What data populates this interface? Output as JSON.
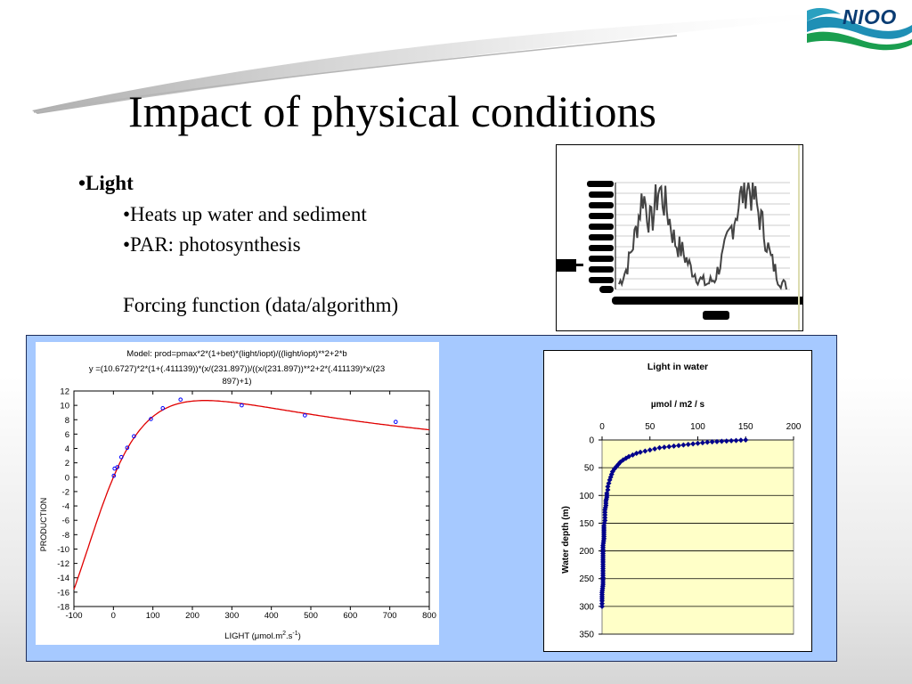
{
  "slide": {
    "title": "Impact of physical conditions",
    "logo_text": "NIOO",
    "bullets": {
      "light": "•Light",
      "heats": "•Heats up water and sediment",
      "par": "•PAR: photosynthesis",
      "forcing": "Forcing function (data/algorithm)"
    }
  },
  "colors": {
    "panel_blue": "#a6c9ff",
    "curve_red": "#e00000",
    "points_blue": "#0000ff",
    "depth_navy": "#00008b",
    "plot_fill": "#ffffc8"
  },
  "chart_data": [
    {
      "type": "line",
      "title": "",
      "note": "small embedded chart with illegible garbled axis labels",
      "series": [
        {
          "values": [
            0.05,
            0.2,
            0.5,
            0.9,
            0.6,
            0.95,
            0.75,
            0.45,
            0.35,
            0.2,
            0.1,
            0.05,
            0.1,
            0.3,
            0.55,
            0.8,
            1.0,
            0.85,
            0.6,
            0.3,
            0.1,
            0.02
          ]
        }
      ]
    },
    {
      "type": "scatter",
      "title": "Model: prod=pmax*2*(1+bet)*(light/iopt)/((light/iopt)**2+2*b",
      "subtitle": "y =(10.6727)*2*(1+(.411139))*(x/(231.897))/((x/(231.897))**2+2*(.411139)*x/(23",
      "subtitle_cont": "897)+1)",
      "xlabel": "LIGHT (μmol.m2.s-1)",
      "xlabel_parts": {
        "base": "LIGHT (",
        "mu": "μ",
        "mid": "mol.m",
        "sup1": "2",
        "dot": ".s",
        "sup2": "-1",
        "end": ")"
      },
      "ylabel": "PRODUCTION",
      "xlim": [
        -100,
        800
      ],
      "ylim": [
        -18,
        12
      ],
      "xticks": [
        "-100",
        "0",
        "100",
        "200",
        "300",
        "400",
        "500",
        "600",
        "700",
        "800"
      ],
      "yticks": [
        "12",
        "10",
        "8",
        "6",
        "4",
        "2",
        "0",
        "-2",
        "-4",
        "-6",
        "-8",
        "-10",
        "-12",
        "-14",
        "-16",
        "-18"
      ],
      "points": {
        "x": [
          1,
          3,
          10,
          20,
          35,
          52,
          95,
          125,
          170,
          325,
          485,
          715
        ],
        "y": [
          0.2,
          1.2,
          1.4,
          2.8,
          4.1,
          5.7,
          8.1,
          9.6,
          10.8,
          10.0,
          8.6,
          7.7
        ]
      },
      "model": {
        "pmax": 10.6727,
        "bet": 0.411139,
        "iopt": 231.897
      }
    },
    {
      "type": "scatter",
      "title": "Light in water",
      "xlabel": "µmol / m2 / s",
      "ylabel": "Water depth (m)",
      "xlim": [
        0,
        200
      ],
      "ylim": [
        0,
        350
      ],
      "xticks": [
        "0",
        "50",
        "100",
        "150",
        "200"
      ],
      "yticks": [
        "0",
        "50",
        "100",
        "150",
        "200",
        "250",
        "300",
        "350"
      ],
      "series": [
        {
          "x": [
            150,
            145,
            140,
            135,
            130,
            125,
            120,
            115,
            110,
            105,
            100,
            95,
            90,
            85,
            80,
            75,
            70,
            65,
            60,
            55,
            50,
            45,
            40,
            36,
            32,
            28,
            25,
            22,
            19,
            17,
            15,
            13,
            11,
            10,
            9,
            8,
            7,
            6,
            6,
            5,
            5,
            4,
            4,
            3,
            3,
            3,
            2,
            2,
            2,
            1,
            1,
            1,
            1,
            1,
            0,
            0,
            0
          ],
          "y": [
            0,
            0.5,
            1,
            1.5,
            2,
            2.5,
            3,
            3.5,
            4,
            5,
            6,
            7,
            8,
            9,
            10,
            11,
            12,
            13,
            14,
            16,
            18,
            20,
            22,
            24,
            27,
            30,
            33,
            36,
            40,
            44,
            48,
            52,
            57,
            62,
            67,
            72,
            78,
            84,
            90,
            96,
            103,
            110,
            118,
            126,
            135,
            145,
            155,
            166,
            178,
            190,
            205,
            220,
            240,
            260,
            275,
            290,
            300
          ]
        }
      ]
    }
  ]
}
